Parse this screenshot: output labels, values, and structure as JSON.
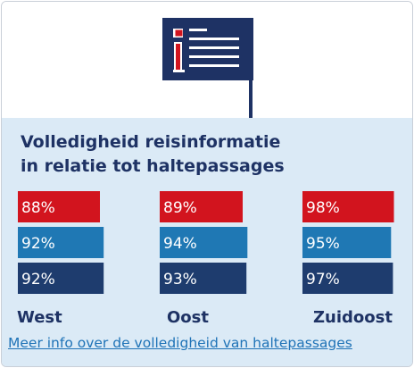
{
  "title_lines": [
    "Volledigheid reisinformatie",
    "in relatie tot haltepassages"
  ],
  "link_text": "Meer info over de volledigheid van haltepassages",
  "icon": "info-sign-icon",
  "colors": {
    "series1": "#d2141e",
    "series2": "#1f78b4",
    "series3": "#1e3c6e",
    "panel": "#dbeaf6",
    "text": "#1e3264",
    "link": "#1f73b7"
  },
  "chart_data": {
    "type": "bar",
    "orientation": "horizontal",
    "title": "Volledigheid reisinformatie in relatie tot haltepassages",
    "categories": [
      "West",
      "Oost",
      "Zuidoost"
    ],
    "series": [
      {
        "values": [
          88,
          89,
          98
        ],
        "labels": [
          "88%",
          "89%",
          "98%"
        ],
        "color": "#d2141e"
      },
      {
        "values": [
          92,
          94,
          95
        ],
        "labels": [
          "92%",
          "94%",
          "95%"
        ],
        "color": "#1f78b4"
      },
      {
        "values": [
          92,
          93,
          97
        ],
        "labels": [
          "92%",
          "93%",
          "97%"
        ],
        "color": "#1e3c6e"
      }
    ],
    "unit": "%",
    "grid": false,
    "legend": "none"
  }
}
